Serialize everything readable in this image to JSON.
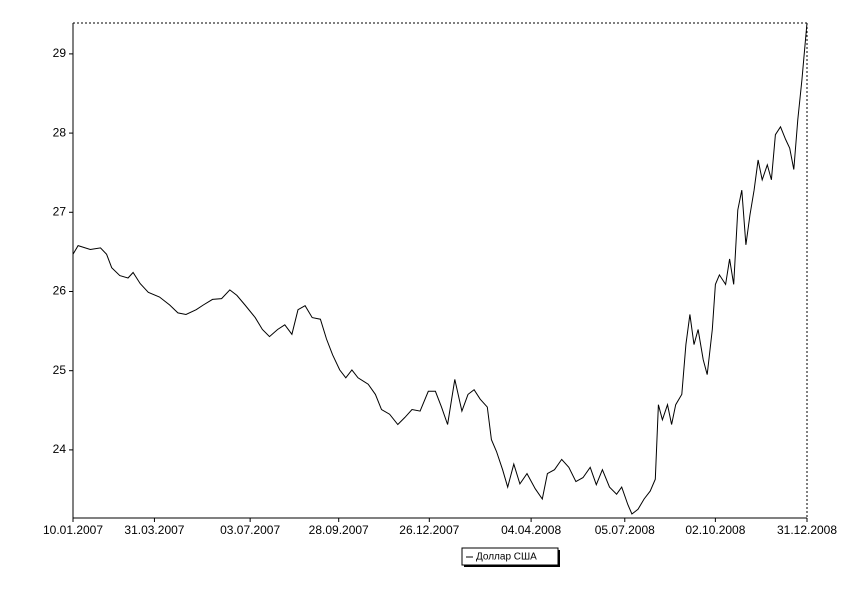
{
  "chart_data": {
    "type": "line",
    "x": [
      "10.01.2007",
      "15.01.2007",
      "27.01.2007",
      "06.02.2007",
      "12.02.2007",
      "17.02.2007",
      "25.02.2007",
      "05.03.2007",
      "10.03.2007",
      "17.03.2007",
      "25.03.2007",
      "05.04.2007",
      "15.04.2007",
      "23.04.2007",
      "01.05.2007",
      "11.05.2007",
      "18.05.2007",
      "27.05.2007",
      "05.06.2007",
      "13.06.2007",
      "20.06.2007",
      "28.06.2007",
      "08.07.2007",
      "15.07.2007",
      "22.07.2007",
      "30.07.2007",
      "06.08.2007",
      "13.08.2007",
      "19.08.2007",
      "26.08.2007",
      "02.09.2007",
      "10.09.2007",
      "16.09.2007",
      "22.09.2007",
      "29.09.2007",
      "05.10.2007",
      "11.10.2007",
      "17.10.2007",
      "27.10.2007",
      "03.11.2007",
      "09.11.2007",
      "17.11.2007",
      "25.11.2007",
      "02.12.2007",
      "09.12.2007",
      "17.12.2007",
      "25.12.2007",
      "01.01.2008",
      "07.01.2008",
      "13.01.2008",
      "20.01.2008",
      "27.01.2008",
      "02.02.2008",
      "08.02.2008",
      "14.02.2008",
      "21.02.2008",
      "25.02.2008",
      "01.03.2008",
      "07.03.2008",
      "12.03.2008",
      "18.03.2008",
      "24.03.2008",
      "31.03.2008",
      "08.04.2008",
      "15.04.2008",
      "20.04.2008",
      "27.04.2008",
      "04.05.2008",
      "11.05.2008",
      "18.05.2008",
      "25.05.2008",
      "01.06.2008",
      "07.06.2008",
      "13.06.2008",
      "20.06.2008",
      "27.06.2008",
      "02.07.2008",
      "08.07.2008",
      "12.07.2008",
      "18.07.2008",
      "24.07.2008",
      "30.07.2008",
      "04.08.2008",
      "07.08.2008",
      "11.08.2008",
      "16.08.2008",
      "20.08.2008",
      "24.08.2008",
      "30.08.2008",
      "03.09.2008",
      "07.09.2008",
      "11.09.2008",
      "15.09.2008",
      "20.09.2008",
      "24.09.2008",
      "29.09.2008",
      "02.10.2008",
      "06.10.2008",
      "12.10.2008",
      "16.10.2008",
      "20.10.2008",
      "24.10.2008",
      "28.10.2008",
      "01.11.2008",
      "05.11.2008",
      "09.11.2008",
      "13.11.2008",
      "17.11.2008",
      "22.11.2008",
      "26.11.2008",
      "30.11.2008",
      "05.12.2008",
      "10.12.2008",
      "14.12.2008",
      "18.12.2008",
      "22.12.2008",
      "26.12.2008",
      "29.12.2008",
      "31.12.2008"
    ],
    "series": [
      {
        "name": "Доллар США",
        "color": "#000000",
        "values": [
          26.47,
          26.58,
          26.53,
          26.55,
          26.47,
          26.3,
          26.2,
          26.17,
          26.24,
          26.1,
          25.99,
          25.93,
          25.83,
          25.73,
          25.71,
          25.77,
          25.83,
          25.9,
          25.91,
          26.02,
          25.95,
          25.83,
          25.67,
          25.52,
          25.43,
          25.52,
          25.58,
          25.46,
          25.77,
          25.82,
          25.67,
          25.65,
          25.4,
          25.2,
          25.01,
          24.91,
          25.01,
          24.91,
          24.83,
          24.7,
          24.51,
          24.45,
          24.32,
          24.41,
          24.51,
          24.49,
          24.74,
          24.74,
          24.54,
          24.32,
          24.89,
          24.49,
          24.7,
          24.76,
          24.64,
          24.54,
          24.13,
          23.98,
          23.75,
          23.53,
          23.82,
          23.57,
          23.7,
          23.51,
          23.38,
          23.7,
          23.75,
          23.88,
          23.78,
          23.6,
          23.65,
          23.78,
          23.56,
          23.75,
          23.53,
          23.44,
          23.53,
          23.31,
          23.19,
          23.25,
          23.38,
          23.48,
          23.63,
          24.57,
          24.38,
          24.57,
          24.32,
          24.57,
          24.7,
          25.33,
          25.71,
          25.33,
          25.52,
          25.14,
          24.95,
          25.52,
          26.09,
          26.21,
          26.09,
          26.41,
          26.09,
          27.03,
          27.28,
          26.59,
          26.97,
          27.28,
          27.66,
          27.41,
          27.6,
          27.41,
          27.98,
          28.08,
          27.92,
          27.81,
          27.54,
          28.17,
          28.67,
          29.11,
          29.39
        ]
      }
    ],
    "xlim": [
      "10.01.2007",
      "31.12.2008"
    ],
    "xticks": [
      "10.01.2007",
      "31.03.2007",
      "03.07.2007",
      "28.09.2007",
      "26.12.2007",
      "04.04.2008",
      "05.07.2008",
      "02.10.2008",
      "31.12.2008"
    ],
    "ylim": [
      23.14,
      29.39
    ],
    "yticks": [
      24,
      25,
      26,
      27,
      28,
      29
    ]
  }
}
